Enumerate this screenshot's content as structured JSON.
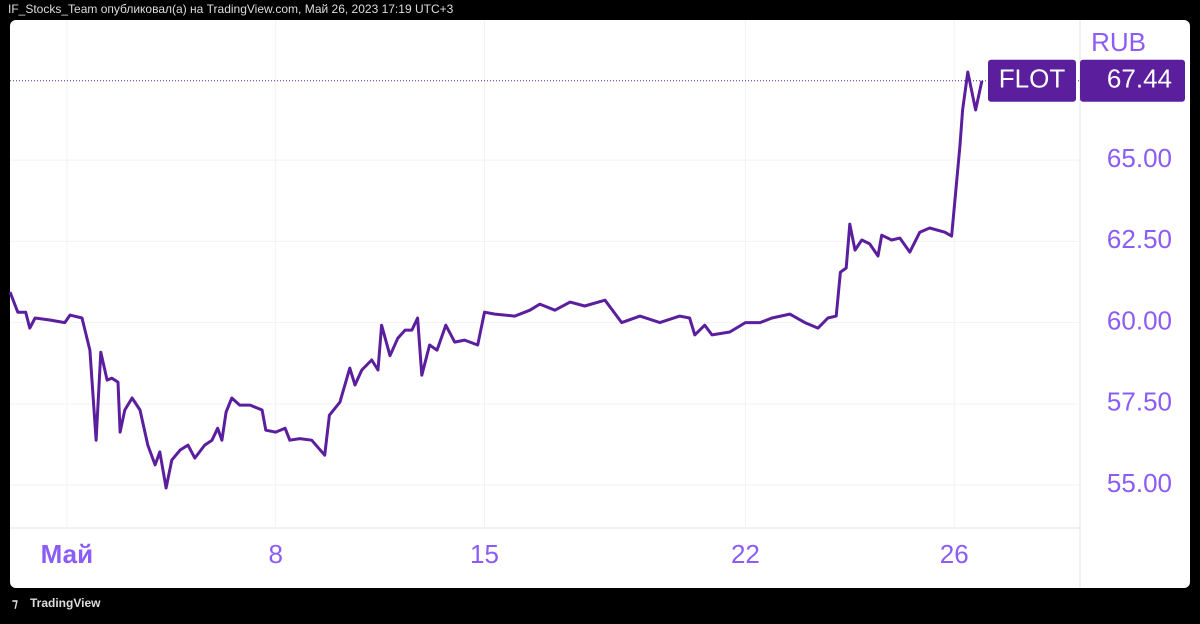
{
  "header": {
    "text": "IF_Stocks_Team опубликовал(а) на TradingView.com, Май 26, 2023 17:19 UTC+3"
  },
  "footer": {
    "text": "TradingView"
  },
  "chart_data": {
    "type": "line",
    "currency": "RUB",
    "x": [
      -1.09,
      -0.94,
      -0.79,
      -0.71,
      -0.61,
      -0.33,
      -0.04,
      0.06,
      0.29,
      0.44,
      0.56,
      0.65,
      0.77,
      0.86,
      0.98,
      1.02,
      1.11,
      1.25,
      1.4,
      1.55,
      1.69,
      1.78,
      1.9,
      2.01,
      2.17,
      2.32,
      2.45,
      2.64,
      2.78,
      2.89,
      2.97,
      3.05,
      3.16,
      3.31,
      3.51,
      3.74,
      3.81,
      4.0,
      4.18,
      4.27,
      4.46,
      4.69,
      4.94,
      5.03,
      5.23,
      5.42,
      5.52,
      5.65,
      5.84,
      5.96,
      6.03,
      6.19,
      6.34,
      6.48,
      6.61,
      6.72,
      6.8,
      6.95,
      7.09,
      7.26,
      7.43,
      7.62,
      7.87,
      8.0,
      8.2,
      8.58,
      8.87,
      9.06,
      9.35,
      9.64,
      9.92,
      10.31,
      10.63,
      10.98,
      11.36,
      11.74,
      11.93,
      12.03,
      12.22,
      12.36,
      12.7,
      13.0,
      13.28,
      13.51,
      13.85,
      14.14,
      14.39,
      14.58,
      14.74,
      14.82,
      14.93,
      15.0,
      15.1,
      15.23,
      15.38,
      15.54,
      15.61,
      15.8,
      15.96,
      16.15,
      16.34,
      16.53,
      16.82,
      16.95,
      17.0,
      17.11,
      17.16,
      17.26,
      17.41,
      17.53
    ],
    "series": [
      {
        "name": "FLOT",
        "color": "#5b1f9e",
        "values": [
          60.94,
          60.32,
          60.32,
          59.83,
          60.14,
          60.08,
          60.0,
          60.23,
          60.14,
          59.15,
          56.38,
          59.09,
          58.23,
          58.29,
          58.17,
          56.63,
          57.31,
          57.68,
          57.31,
          56.23,
          55.62,
          56.02,
          54.91,
          55.77,
          56.08,
          56.23,
          55.83,
          56.23,
          56.38,
          56.75,
          56.38,
          57.25,
          57.68,
          57.46,
          57.46,
          57.31,
          56.69,
          56.63,
          56.75,
          56.38,
          56.43,
          56.38,
          55.92,
          57.15,
          57.55,
          58.6,
          58.08,
          58.54,
          58.85,
          58.54,
          59.92,
          58.98,
          59.52,
          59.77,
          59.77,
          60.14,
          58.38,
          59.31,
          59.15,
          59.92,
          59.4,
          59.46,
          59.31,
          60.32,
          60.26,
          60.2,
          60.38,
          60.57,
          60.38,
          60.63,
          60.51,
          60.69,
          60.0,
          60.2,
          60.0,
          60.2,
          60.14,
          59.62,
          59.92,
          59.62,
          59.71,
          60.0,
          60.0,
          60.14,
          60.26,
          60.0,
          59.83,
          60.14,
          60.2,
          61.55,
          61.68,
          63.03,
          62.23,
          62.54,
          62.42,
          62.05,
          62.69,
          62.54,
          62.6,
          62.17,
          62.78,
          62.91,
          62.78,
          62.66,
          63.52,
          65.46,
          66.54,
          67.71,
          66.54,
          67.44
        ]
      }
    ],
    "xlim": [
      -1.09,
      19.41
    ],
    "xticks": [
      {
        "value": 0,
        "label": "Май"
      },
      {
        "value": 4,
        "label": "8"
      },
      {
        "value": 8,
        "label": "15"
      },
      {
        "value": 13,
        "label": "22"
      },
      {
        "value": 17,
        "label": "26"
      }
    ],
    "ylim": [
      53.68,
      69.31
    ],
    "yticks": [
      {
        "value": 55,
        "label": "55.00"
      },
      {
        "value": 57.5,
        "label": "57.50"
      },
      {
        "value": 60,
        "label": "60.00"
      },
      {
        "value": 62.5,
        "label": "62.50"
      },
      {
        "value": 65,
        "label": "65.00"
      }
    ],
    "grid": true,
    "tick_color": "#8b5cf6"
  }
}
